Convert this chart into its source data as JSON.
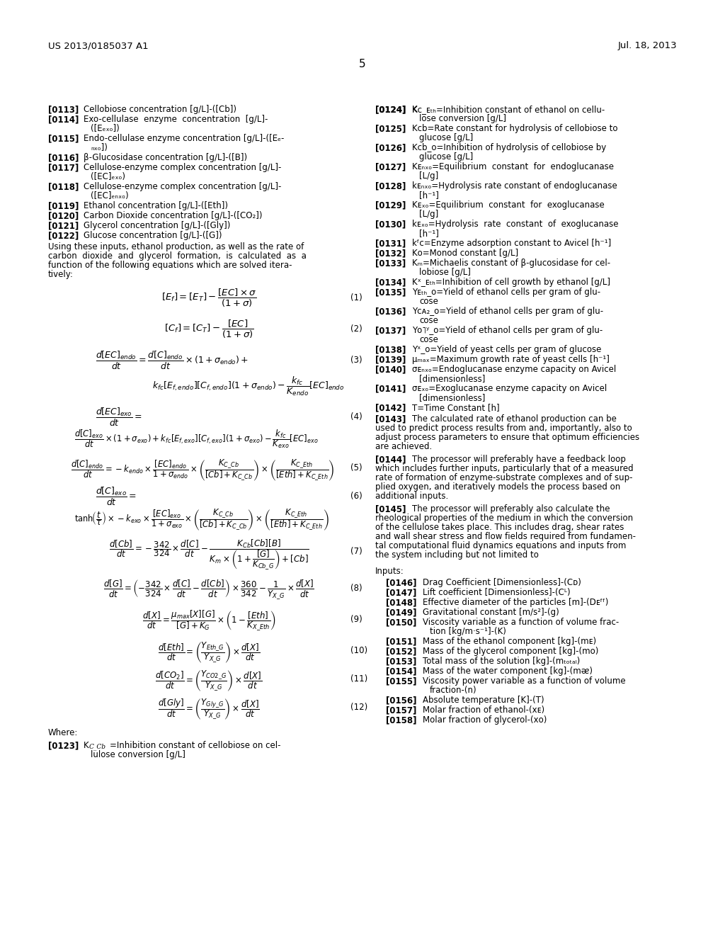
{
  "bg_color": "#ffffff",
  "header_left": "US 2013/0185037 A1",
  "header_right": "Jul. 18, 2013",
  "page_number": "5"
}
